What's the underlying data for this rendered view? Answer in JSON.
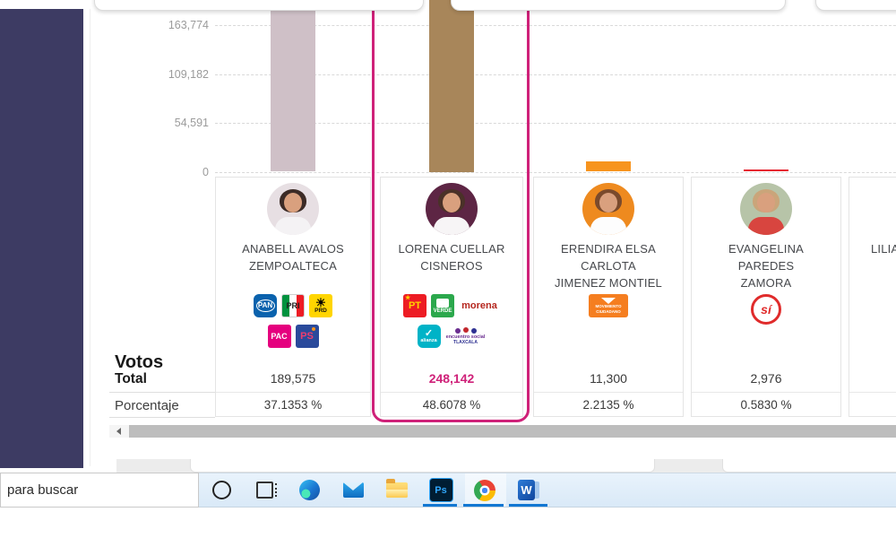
{
  "colors": {
    "highlight": "#cf2179",
    "sidebar": "#3d3b63",
    "taskbar_underline": "#1277d2",
    "bar_colors": [
      "#cfc0c7",
      "#a8865a",
      "#f7941e",
      "#e62531"
    ]
  },
  "chart_data": {
    "type": "bar",
    "title": "",
    "xlabel": "",
    "ylabel": "",
    "categories": [
      "ANABELL AVALOS ZEMPOALTECA",
      "LORENA CUELLAR CISNEROS",
      "ERENDIRA ELSA CARLOTA JIMENEZ MONTIEL",
      "EVANGELINA PAREDES ZAMORA",
      "LILIA"
    ],
    "values": [
      189575,
      248142,
      11300,
      2976,
      null
    ],
    "y_ticks": [
      "163,774",
      "109,182",
      "54,591",
      "0"
    ],
    "y_tick_values": [
      163774,
      109182,
      54591,
      0
    ],
    "grid": "dashed-horizontal",
    "legend": "none"
  },
  "table": {
    "labels": {
      "votos": "Votos",
      "total": "Total",
      "porcentaje": "Porcentaje"
    },
    "candidates": [
      {
        "name_lines": [
          "ANABELL AVALOS",
          "ZEMPOALTECA"
        ],
        "total": "189,575",
        "pct": "37.1353 %",
        "highlighted": false,
        "party_rows": [
          [
            "pan",
            "pri",
            "prd"
          ],
          [
            "pac",
            "ps"
          ]
        ],
        "avatar": {
          "bg": "#e7dfe3",
          "hair": "#3c2b26",
          "shirt": "#f4f2f4"
        }
      },
      {
        "name_lines": [
          "LORENA CUELLAR",
          "CISNEROS"
        ],
        "total": "248,142",
        "pct": "48.6078 %",
        "highlighted": true,
        "party_rows": [
          [
            "pt",
            "verde",
            "morena"
          ],
          [
            "alianza",
            "encuentro"
          ]
        ],
        "avatar": {
          "bg": "#5d2544",
          "hair": "#4a3128",
          "shirt": "#f7f5f6"
        }
      },
      {
        "name_lines": [
          "ERENDIRA ELSA",
          "CARLOTA",
          "JIMENEZ MONTIEL"
        ],
        "total": "11,300",
        "pct": "2.2135 %",
        "highlighted": false,
        "party_rows": [
          [
            "mc"
          ]
        ],
        "avatar": {
          "bg": "#ee8a1f",
          "hair": "#7a4a2c",
          "shirt": "#fdfdfd"
        }
      },
      {
        "name_lines": [
          "EVANGELINA",
          "PAREDES",
          "ZAMORA"
        ],
        "total": "2,976",
        "pct": "0.5830 %",
        "highlighted": false,
        "party_rows": [
          [
            "si"
          ]
        ],
        "avatar": {
          "bg": "#b7c4a8",
          "hair": "#caa57a",
          "shirt": "#d8453f"
        }
      },
      {
        "name_lines": [
          "LILIA"
        ],
        "total": "",
        "pct": "",
        "highlighted": false,
        "name_align": "left",
        "party_rows": [],
        "avatar": {
          "bg": "#e0e0e0",
          "hair": "#555555",
          "shirt": "#ffffff"
        }
      }
    ]
  },
  "parties": {
    "pan": {
      "label": "PAN"
    },
    "pri": {
      "label": "PRI"
    },
    "prd": {
      "label": "PRD"
    },
    "pac": {
      "label": "PAC"
    },
    "ps": {
      "label": "PS"
    },
    "pt": {
      "label": "PT"
    },
    "verde": {
      "label": "VERDE"
    },
    "morena": {
      "label": "morena"
    },
    "alianza": {
      "label": "alianza"
    },
    "encuentro": {
      "label": "encuentro social",
      "label2": "TLAXCALA"
    },
    "mc": {
      "label": "MOVIMIENTO",
      "label2": "CIUDADANO"
    },
    "si": {
      "label": "sí"
    }
  },
  "taskbar": {
    "search_text": "para buscar",
    "icons": [
      {
        "id": "cortana",
        "label": ""
      },
      {
        "id": "task-view",
        "label": ""
      },
      {
        "id": "edge",
        "label": ""
      },
      {
        "id": "mail",
        "label": ""
      },
      {
        "id": "file-explorer",
        "label": ""
      },
      {
        "id": "photoshop",
        "label": "Ps"
      },
      {
        "id": "chrome",
        "label": ""
      },
      {
        "id": "word",
        "label": "W"
      }
    ]
  }
}
